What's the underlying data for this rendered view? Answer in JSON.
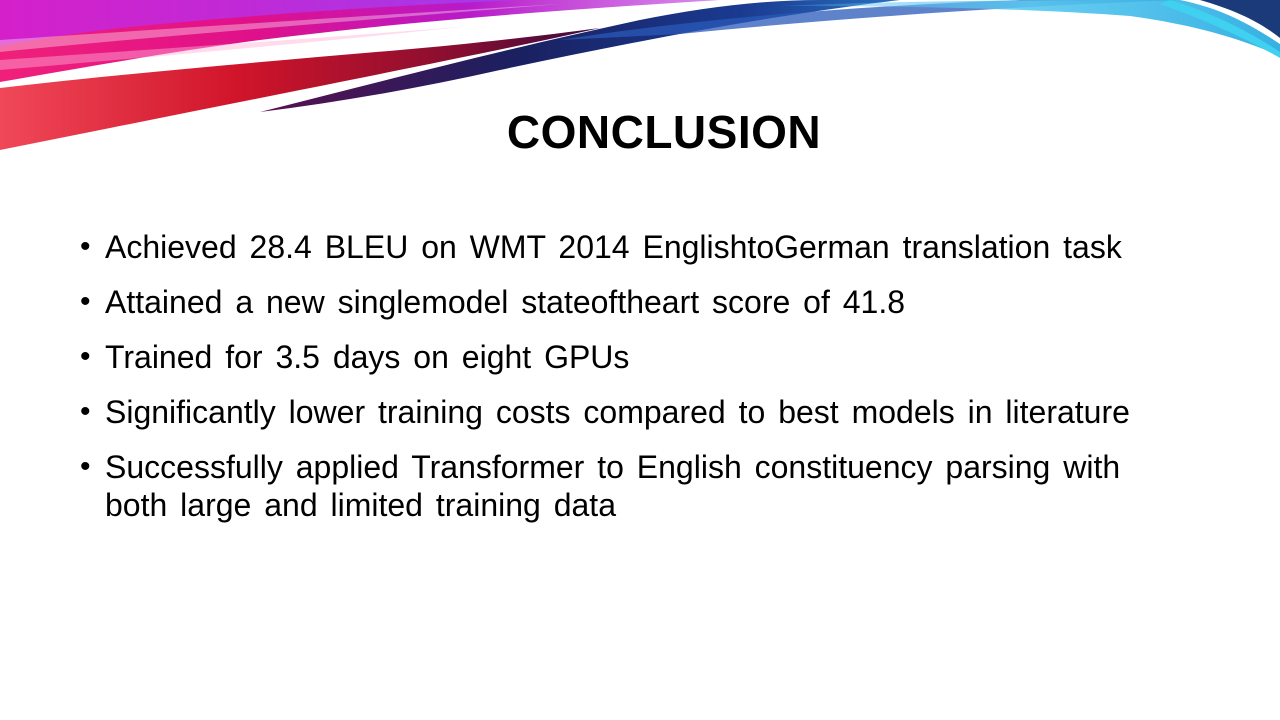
{
  "slide": {
    "title": "CONCLUSION",
    "bullet_symbol": "•",
    "bullets": [
      "Achieved 28.4 BLEU on WMT 2014 EnglishtoGerman translation task",
      "Attained a new singlemodel stateoftheart score of 41.8",
      "Trained for 3.5 days on eight GPUs",
      "Significantly lower training costs compared to best models in literature",
      "Successfully applied Transformer to English constituency parsing with both large and limited training data"
    ]
  },
  "colors": {
    "background": "#ffffff",
    "text": "#000000",
    "ribbon_pink": "#e8107a",
    "ribbon_magenta": "#c81ad8",
    "ribbon_red": "#d0142a",
    "ribbon_navy": "#1a2a6e",
    "ribbon_blue": "#2a6fd0",
    "ribbon_cyan": "#35c6e8"
  }
}
